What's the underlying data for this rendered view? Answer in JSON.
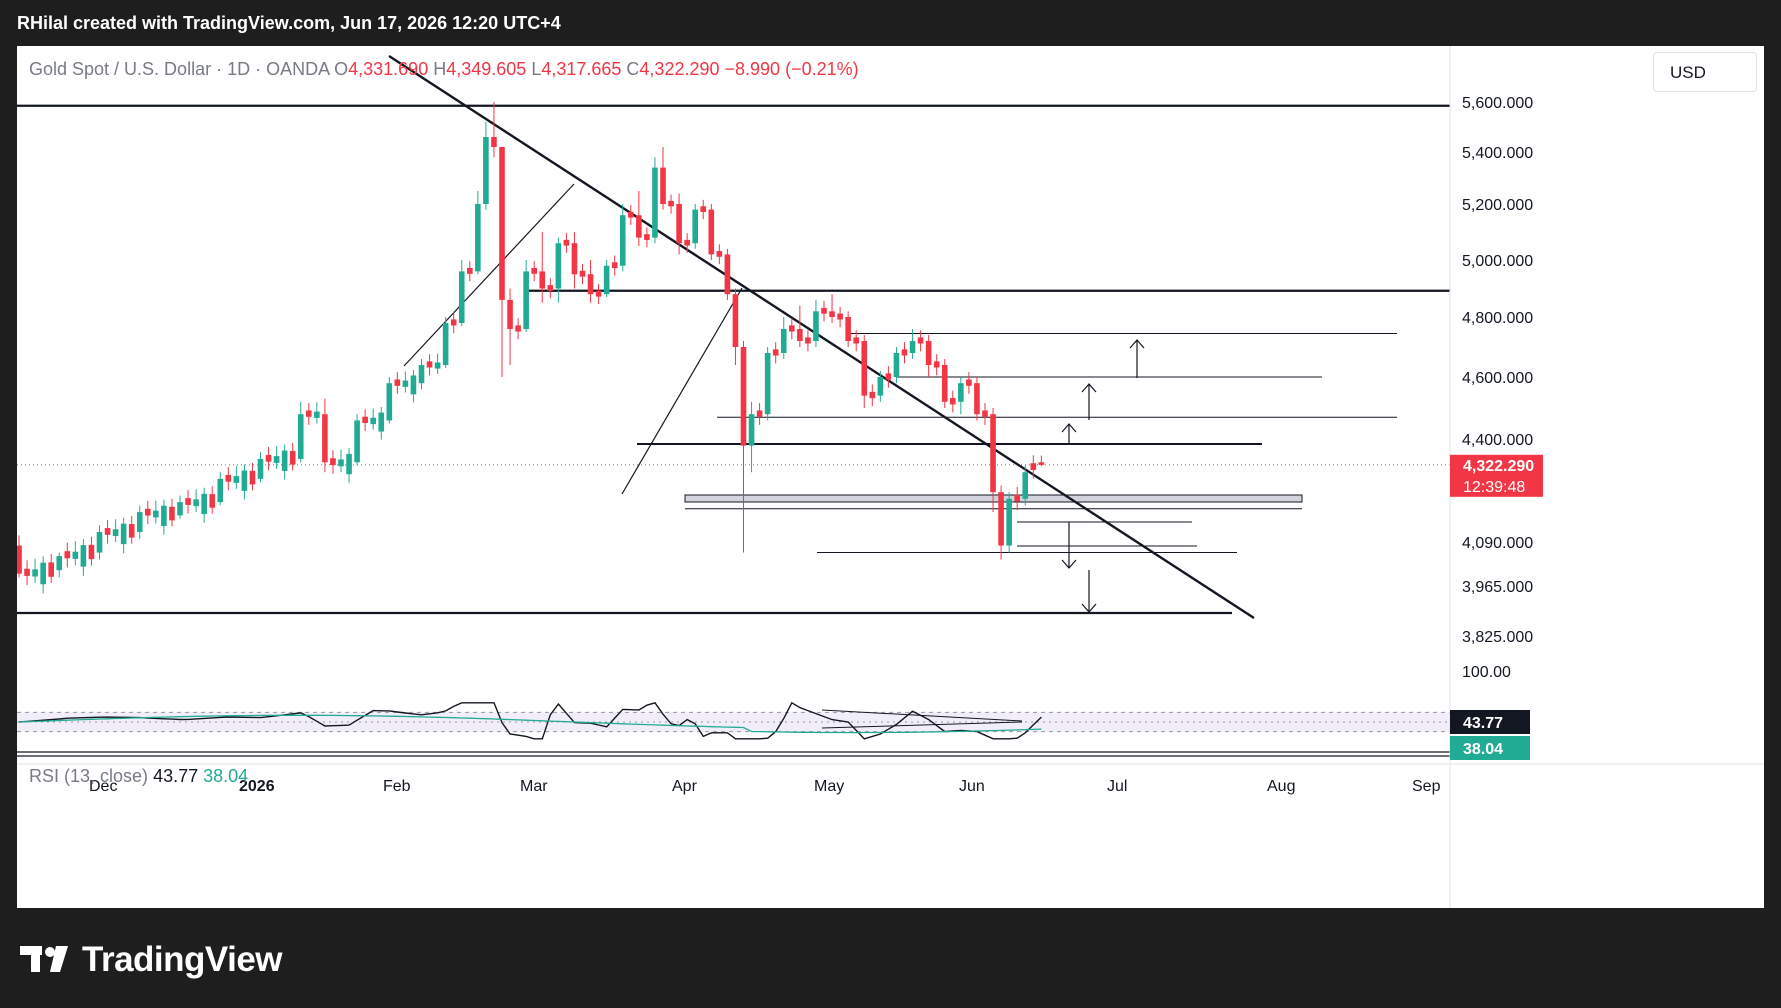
{
  "header": {
    "credit": "RHilal created with TradingView.com, Jun 17, 2026 12:20 UTC+4"
  },
  "symbol": {
    "name": "Gold Spot / U.S. Dollar · 1D · OANDA",
    "open_label": "O",
    "open": "4,331.690",
    "high_label": "H",
    "high": "4,349.605",
    "low_label": "L",
    "low": "4,317.665",
    "close_label": "C",
    "close": "4,322.290",
    "change": "−8.990 (−0.21%)"
  },
  "currency_button": "USD",
  "price_badge": {
    "price": "4,322.290",
    "countdown": "12:39:48"
  },
  "rsi": {
    "label": "RSI (13, close)",
    "value": "43.77",
    "ma_value": "38.04",
    "axis_top": "100.00"
  },
  "footer": {
    "logo": "TradingView",
    "logo_icon": "tradingview-logo-icon"
  },
  "colors": {
    "up": "#22ab94",
    "down": "#f23645",
    "rsi_line": "#131722",
    "rsi_ma": "#22ab94",
    "rsi_band": "#7e57c2"
  },
  "chart_data": {
    "type": "candlestick",
    "y_axis_ticks": [
      "5,600.000",
      "5,400.000",
      "5,200.000",
      "5,000.000",
      "4,800.000",
      "4,600.000",
      "4,400.000",
      "4,090.000",
      "3,965.000",
      "3,825.000"
    ],
    "x_axis_ticks": [
      "Dec",
      "2026",
      "Feb",
      "Mar",
      "Apr",
      "May",
      "Jun",
      "Jul",
      "Aug",
      "Sep"
    ],
    "x_index_start": "2025-11-20",
    "last_price": 4322.29,
    "horizontal_levels": [
      5615,
      4892,
      4745,
      4600,
      4470,
      4385,
      4190,
      4060
    ],
    "trendline": {
      "from": [
        52,
        5560
      ],
      "to": [
        205,
        3880
      ]
    },
    "rsi_levels": {
      "upper": 70,
      "lower": 30,
      "mid": 50
    },
    "candles_ohlc_summary": [
      [
        0,
        4080,
        4110,
        3990,
        4000
      ],
      [
        5,
        4010,
        4060,
        3990,
        4050
      ],
      [
        10,
        4060,
        4140,
        4040,
        4120
      ],
      [
        15,
        4120,
        4200,
        4100,
        4180
      ],
      [
        20,
        4170,
        4230,
        4160,
        4210
      ],
      [
        25,
        4210,
        4300,
        4200,
        4280
      ],
      [
        30,
        4280,
        4360,
        4270,
        4340
      ],
      [
        35,
        4340,
        4520,
        4330,
        4480
      ],
      [
        38,
        4480,
        4530,
        4300,
        4330
      ],
      [
        42,
        4330,
        4480,
        4320,
        4460
      ],
      [
        46,
        4460,
        4600,
        4450,
        4580
      ],
      [
        50,
        4580,
        4660,
        4560,
        4640
      ],
      [
        53,
        4640,
        4800,
        4630,
        4780
      ],
      [
        55,
        4780,
        5000,
        4770,
        4960
      ],
      [
        57,
        4960,
        5250,
        4950,
        5200
      ],
      [
        58,
        5200,
        5520,
        5180,
        5460
      ],
      [
        59,
        5460,
        5600,
        5380,
        5420
      ],
      [
        60,
        5420,
        5420,
        4600,
        4860
      ],
      [
        61,
        4860,
        4900,
        4640,
        4760
      ],
      [
        63,
        4760,
        5000,
        4750,
        4960
      ],
      [
        65,
        4960,
        5100,
        4850,
        4900
      ],
      [
        67,
        4900,
        5080,
        4850,
        5060
      ],
      [
        69,
        5060,
        5100,
        4900,
        4950
      ],
      [
        71,
        4950,
        5000,
        4850,
        4880
      ],
      [
        73,
        4880,
        5000,
        4870,
        4980
      ],
      [
        75,
        4980,
        5200,
        4960,
        5160
      ],
      [
        77,
        5160,
        5250,
        5050,
        5080
      ],
      [
        79,
        5080,
        5380,
        5060,
        5340
      ],
      [
        80,
        5340,
        5420,
        5180,
        5200
      ],
      [
        82,
        5200,
        5240,
        5020,
        5060
      ],
      [
        84,
        5060,
        5200,
        5040,
        5180
      ],
      [
        86,
        5180,
        5200,
        5000,
        5020
      ],
      [
        88,
        5020,
        5040,
        4860,
        4880
      ],
      [
        89,
        4880,
        4900,
        4640,
        4700
      ],
      [
        90,
        4700,
        4720,
        4060,
        4380
      ],
      [
        91,
        4380,
        4520,
        4300,
        4480
      ],
      [
        93,
        4480,
        4700,
        4460,
        4680
      ],
      [
        95,
        4680,
        4800,
        4660,
        4760
      ],
      [
        97,
        4760,
        4840,
        4700,
        4720
      ],
      [
        99,
        4720,
        4860,
        4700,
        4820
      ],
      [
        101,
        4820,
        4880,
        4780,
        4800
      ],
      [
        103,
        4800,
        4820,
        4700,
        4720
      ],
      [
        105,
        4720,
        4740,
        4500,
        4540
      ],
      [
        107,
        4540,
        4620,
        4520,
        4600
      ],
      [
        109,
        4600,
        4700,
        4580,
        4680
      ],
      [
        111,
        4680,
        4760,
        4660,
        4720
      ],
      [
        113,
        4720,
        4740,
        4600,
        4640
      ],
      [
        115,
        4640,
        4660,
        4500,
        4520
      ],
      [
        117,
        4520,
        4600,
        4480,
        4580
      ],
      [
        119,
        4580,
        4600,
        4460,
        4480
      ],
      [
        121,
        4480,
        4500,
        4180,
        4240
      ],
      [
        122,
        4240,
        4260,
        4040,
        4080
      ],
      [
        123,
        4080,
        4240,
        4060,
        4220
      ],
      [
        125,
        4220,
        4320,
        4200,
        4300
      ],
      [
        127,
        4330,
        4350,
        4318,
        4322
      ]
    ]
  }
}
